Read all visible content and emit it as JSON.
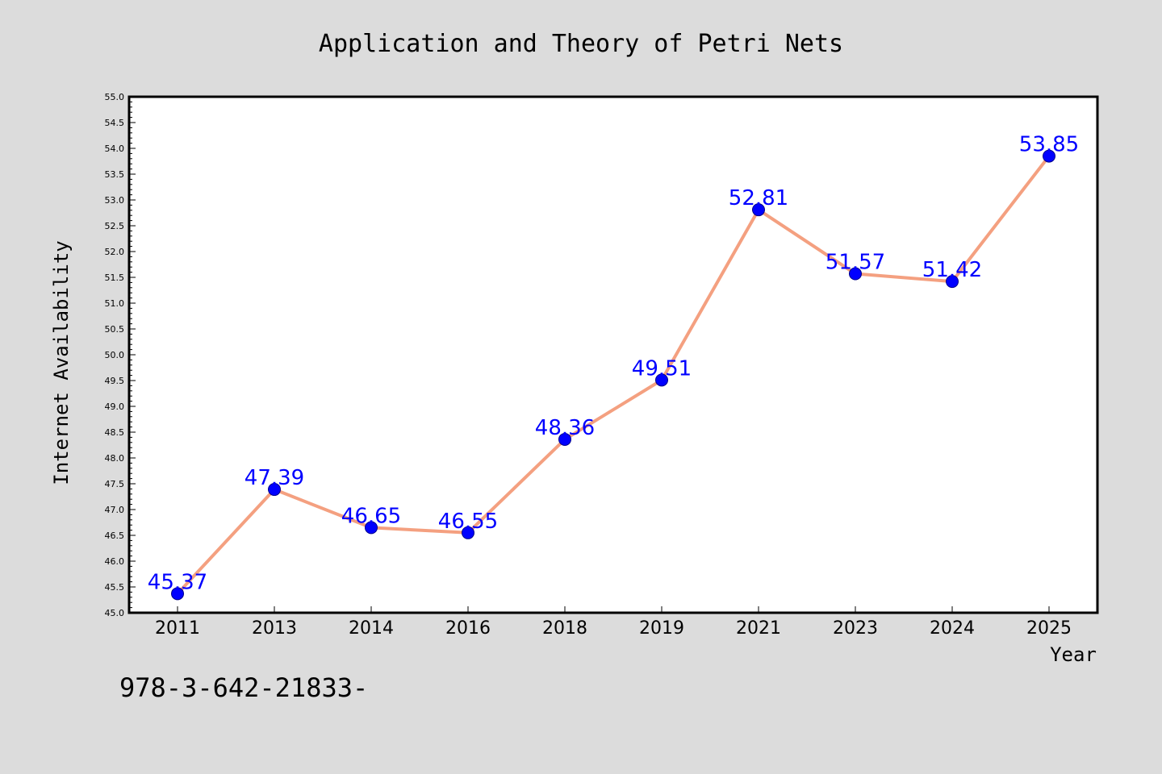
{
  "chart_data": {
    "type": "line",
    "title": "Application and Theory of Petri Nets",
    "xlabel": "Year",
    "ylabel": "Internet Availability",
    "categories": [
      "2011",
      "2013",
      "2014",
      "2016",
      "2018",
      "2019",
      "2021",
      "2023",
      "2024",
      "2025"
    ],
    "series": [
      {
        "values": [
          45.37,
          47.39,
          46.65,
          46.55,
          48.36,
          49.51,
          52.81,
          51.57,
          51.42,
          53.85
        ],
        "data_labels": [
          "45.37",
          "47.39",
          "46.65",
          "46.55",
          "48.36",
          "49.51",
          "52.81",
          "51.57",
          "51.42",
          "53.85"
        ]
      }
    ],
    "ylim": [
      45.0,
      55.0
    ],
    "y_ticks": [
      "45.0",
      "45.5",
      "46.0",
      "46.5",
      "47.0",
      "47.5",
      "48.0",
      "48.5",
      "49.0",
      "49.5",
      "50.0",
      "50.5",
      "51.0",
      "51.5",
      "52.0",
      "52.5",
      "53.0",
      "53.5",
      "54.0",
      "54.5",
      "55.0"
    ],
    "grid": false,
    "legend": "none",
    "colors": {
      "line": "#f4a080",
      "marker": "#0000ff",
      "label": "#0000ff",
      "plot_background": "#ffffff",
      "page_background": "#dcdcdc"
    }
  },
  "footer_text": "978-3-642-21833-"
}
